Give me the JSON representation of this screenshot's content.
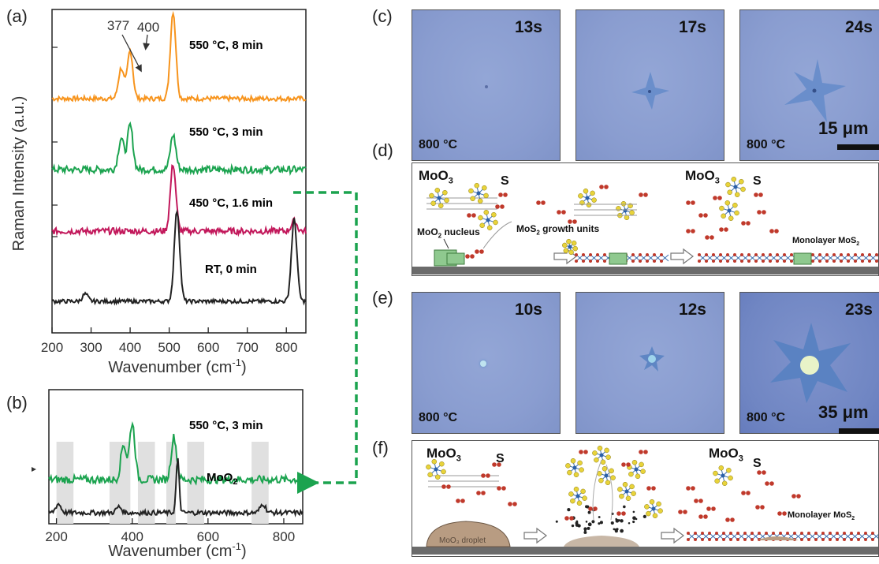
{
  "panels": {
    "a": "(a)",
    "b": "(b)",
    "c": "(c)",
    "d": "(d)",
    "e": "(e)",
    "f": "(f)"
  },
  "raman_a": {
    "ylabel": "Raman Intensity (a.u.)",
    "xlabel": "Wavenumber (cm",
    "xlabel_sup": "-1",
    "xlabel_end": ")",
    "peak_377": "377",
    "peak_400": "400",
    "curves": [
      {
        "label": "550 °C, 8 min",
        "color": "#f7941d"
      },
      {
        "label": "550 °C, 3 min",
        "color": "#1ba34f"
      },
      {
        "label": "450 °C, 1.6 min",
        "color": "#c2185b"
      },
      {
        "label": "RT, 0 min",
        "color": "#222222"
      }
    ]
  },
  "raman_b": {
    "xlabel": "Wavenumber (cm",
    "xlabel_sup": "-1",
    "xlabel_end": ")",
    "label_top": "550 °C, 3 min",
    "label_moo2": "MoO",
    "label_moo2_sub": "2"
  },
  "chart_data": [
    {
      "type": "line",
      "xlabel": "Wavenumber (cm-1)",
      "ylabel": "Raman Intensity (a.u.)",
      "xlim": [
        200,
        850
      ],
      "xticks": [
        200,
        300,
        400,
        500,
        600,
        700,
        800
      ],
      "annotations": [
        "377",
        "400"
      ],
      "series": [
        {
          "name": "550 °C, 8 min",
          "peaks": [
            [
              377,
              0.35
            ],
            [
              400,
              0.55
            ],
            [
              510,
              1.0
            ]
          ]
        },
        {
          "name": "550 °C, 3 min",
          "peaks": [
            [
              377,
              0.5
            ],
            [
              400,
              0.7
            ],
            [
              510,
              0.55
            ]
          ]
        },
        {
          "name": "450 °C, 1.6 min",
          "peaks": [
            [
              510,
              1.0
            ],
            [
              820,
              0.15
            ]
          ]
        },
        {
          "name": "RT, 0 min",
          "peaks": [
            [
              285,
              0.08
            ],
            [
              520,
              1.0
            ],
            [
              820,
              0.9
            ]
          ]
        }
      ]
    },
    {
      "type": "line",
      "xlabel": "Wavenumber (cm-1)",
      "xlim": [
        180,
        850
      ],
      "xticks": [
        200,
        400,
        600,
        800
      ],
      "series": [
        {
          "name": "550 °C, 3 min",
          "peaks": [
            [
              377,
              0.5
            ],
            [
              400,
              0.8
            ],
            [
              510,
              0.6
            ]
          ]
        },
        {
          "name": "MoO2",
          "peaks": [
            [
              205,
              0.15
            ],
            [
              365,
              0.1
            ],
            [
              520,
              0.9
            ],
            [
              745,
              0.15
            ]
          ]
        }
      ]
    }
  ],
  "micro_c": [
    {
      "time": "13s",
      "temp": "800 °C"
    },
    {
      "time": "17s",
      "temp": ""
    },
    {
      "time": "24s",
      "temp": "800 °C"
    }
  ],
  "scale_c": "15 μm",
  "micro_e": [
    {
      "time": "10s",
      "temp": "800 °C"
    },
    {
      "time": "12s",
      "temp": ""
    },
    {
      "time": "23s",
      "temp": "800 °C"
    }
  ],
  "scale_e": "35 μm",
  "schem_d": {
    "moo3": "MoO",
    "moo3_sub": "3",
    "s": "S",
    "moo3_b": "MoO",
    "moo3_b_sub": "3",
    "s_b": "S",
    "nucleus": "MoO",
    "nucleus_sub": "2",
    "nucleus_end": " nucleus",
    "growth": "MoS",
    "growth_sub": "2",
    "growth_end": " growth units",
    "mono": "Monolayer MoS",
    "mono_sub": "2"
  },
  "schem_f": {
    "moo3": "MoO",
    "moo3_sub": "3",
    "s": "S",
    "moo3_b": "MoO",
    "moo3_b_sub": "3",
    "s_b": "S",
    "droplet": "MoO₃ droplet",
    "mono": "Monolayer MoS",
    "mono_sub": "2"
  },
  "colors": {
    "orange": "#f7941d",
    "green": "#1ba34f",
    "magenta": "#c2185b",
    "black": "#222222",
    "link": "#1ba34f",
    "micro_bg": "#8a9dd0",
    "flake": "#5f86c4"
  }
}
